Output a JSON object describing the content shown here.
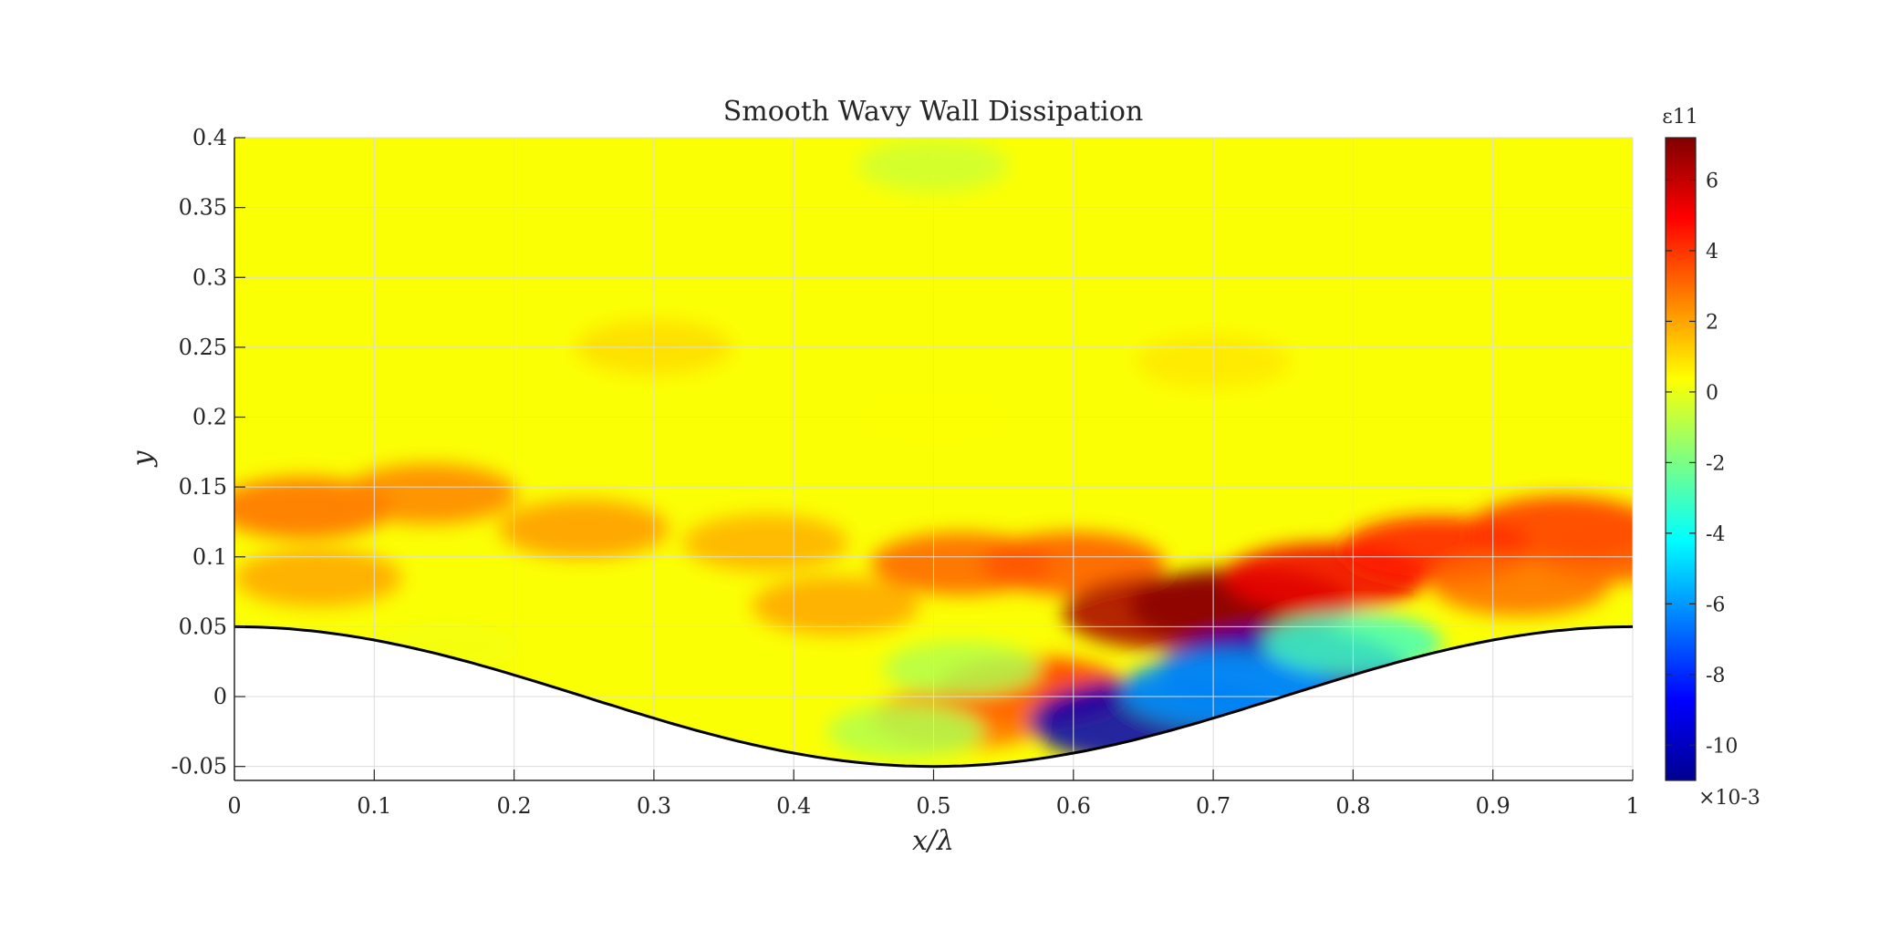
{
  "chart_data": {
    "type": "heatmap",
    "title": "Smooth Wavy Wall Dissipation",
    "xlabel": "x/λ",
    "ylabel": "y",
    "xlim": [
      0,
      1
    ],
    "ylim": [
      -0.06,
      0.4
    ],
    "xticks": [
      "0",
      "0.1",
      "0.2",
      "0.3",
      "0.4",
      "0.5",
      "0.6",
      "0.7",
      "0.8",
      "0.9",
      "1"
    ],
    "yticks": [
      "-0.05",
      "0",
      "0.05",
      "0.1",
      "0.15",
      "0.2",
      "0.25",
      "0.3",
      "0.35",
      "0.4"
    ],
    "grid": true,
    "colormap": "jet",
    "wall": {
      "shape": "cosine",
      "amplitude": 0.05,
      "wavelength": 1
    },
    "colorbar": {
      "label": "ε11",
      "range": [
        -11.0,
        7.2
      ],
      "ticks": [
        "6",
        "4",
        "2",
        "0",
        "-2",
        "-4",
        "-6",
        "-8",
        "-10"
      ],
      "exponent_label": "×10-3"
    },
    "features": [
      {
        "x": 0.05,
        "y": 0.135,
        "value": 3.0
      },
      {
        "x": 0.14,
        "y": 0.145,
        "value": 2.6
      },
      {
        "x": 0.25,
        "y": 0.12,
        "value": 2.2
      },
      {
        "x": 0.06,
        "y": 0.085,
        "value": 2.0
      },
      {
        "x": 0.38,
        "y": 0.11,
        "value": 1.8
      },
      {
        "x": 0.43,
        "y": 0.065,
        "value": 2.0
      },
      {
        "x": 0.52,
        "y": 0.095,
        "value": 3.2
      },
      {
        "x": 0.6,
        "y": 0.095,
        "value": 3.4
      },
      {
        "x": 0.67,
        "y": 0.06,
        "value": 6.5
      },
      {
        "x": 0.72,
        "y": 0.065,
        "value": 7.0
      },
      {
        "x": 0.78,
        "y": 0.085,
        "value": 5.2
      },
      {
        "x": 0.86,
        "y": 0.105,
        "value": 4.5
      },
      {
        "x": 0.95,
        "y": 0.12,
        "value": 4.0
      },
      {
        "x": 0.99,
        "y": 0.105,
        "value": 3.5
      },
      {
        "x": 0.92,
        "y": 0.08,
        "value": 3.0
      },
      {
        "x": 0.57,
        "y": 0.005,
        "value": 4.0
      },
      {
        "x": 0.52,
        "y": -0.015,
        "value": 3.0
      },
      {
        "x": 0.75,
        "y": 0.018,
        "value": -9.5
      },
      {
        "x": 0.66,
        "y": -0.018,
        "value": -10.0
      },
      {
        "x": 0.71,
        "y": 0.005,
        "value": -6.0
      },
      {
        "x": 0.8,
        "y": 0.038,
        "value": -3.0
      },
      {
        "x": 0.52,
        "y": 0.02,
        "value": -1.0
      },
      {
        "x": 0.48,
        "y": -0.025,
        "value": -1.0
      },
      {
        "x": 0.3,
        "y": 0.25,
        "value": 1.0
      },
      {
        "x": 0.7,
        "y": 0.24,
        "value": 0.8
      },
      {
        "x": 0.5,
        "y": 0.2,
        "value": 0.3
      },
      {
        "x": 0.5,
        "y": 0.38,
        "value": -0.5
      },
      {
        "x": 0.15,
        "y": 0.035,
        "value": 0.2
      }
    ]
  }
}
